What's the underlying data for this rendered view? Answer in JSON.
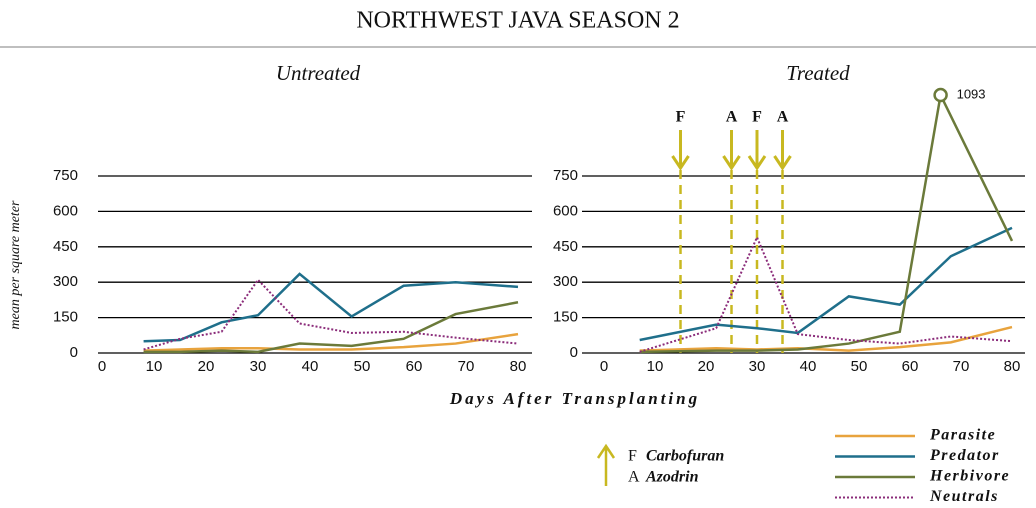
{
  "title": "NORTHWEST JAVA SEASON 2",
  "x_label": "Days After Transplanting",
  "y_label": "mean per square meter",
  "treatment_legend": [
    {
      "code": "F",
      "name": "Carbofuran"
    },
    {
      "code": "A",
      "name": "Azodrin"
    }
  ],
  "chart_data": [
    {
      "type": "line",
      "subtitle": "Untreated",
      "xlim": [
        0,
        80
      ],
      "xticks": [
        0,
        10,
        20,
        30,
        40,
        50,
        60,
        70,
        80
      ],
      "ylim": [
        0,
        750
      ],
      "yticks": [
        0,
        150,
        300,
        450,
        600,
        750
      ],
      "grid": true,
      "series": [
        {
          "name": "Parasite",
          "color": "#e8a33d",
          "style": "solid",
          "x": [
            8,
            15,
            23,
            30,
            38,
            48,
            58,
            68,
            80
          ],
          "values": [
            10,
            15,
            20,
            20,
            15,
            15,
            25,
            40,
            80
          ]
        },
        {
          "name": "Predator",
          "color": "#1f6f8b",
          "style": "solid",
          "x": [
            8,
            15,
            23,
            30,
            38,
            48,
            58,
            68,
            80
          ],
          "values": [
            50,
            55,
            130,
            160,
            335,
            155,
            285,
            300,
            280
          ]
        },
        {
          "name": "Herbivore",
          "color": "#6b7a3a",
          "style": "solid",
          "x": [
            8,
            15,
            23,
            30,
            38,
            48,
            58,
            68,
            80
          ],
          "values": [
            5,
            5,
            10,
            5,
            40,
            30,
            60,
            165,
            215
          ]
        },
        {
          "name": "Neutrals",
          "color": "#8b2c7a",
          "style": "dotted",
          "x": [
            8,
            15,
            23,
            30,
            38,
            48,
            58,
            68,
            80
          ],
          "values": [
            15,
            60,
            90,
            310,
            125,
            85,
            90,
            65,
            40
          ]
        }
      ]
    },
    {
      "type": "line",
      "subtitle": "Treated",
      "xlim": [
        0,
        80
      ],
      "xticks": [
        0,
        10,
        20,
        30,
        40,
        50,
        60,
        70,
        80
      ],
      "ylim": [
        0,
        750
      ],
      "yticks": [
        0,
        150,
        300,
        450,
        600,
        750
      ],
      "grid": true,
      "treatments": [
        {
          "x": 15,
          "label": "F"
        },
        {
          "x": 25,
          "label": "A"
        },
        {
          "x": 30,
          "label": "F"
        },
        {
          "x": 35,
          "label": "A"
        }
      ],
      "treatment_color": "#c8b820",
      "series": [
        {
          "name": "Parasite",
          "color": "#e8a33d",
          "style": "solid",
          "x": [
            7,
            22,
            30,
            38,
            48,
            58,
            68,
            80
          ],
          "values": [
            10,
            20,
            15,
            20,
            10,
            25,
            45,
            110
          ]
        },
        {
          "name": "Predator",
          "color": "#1f6f8b",
          "style": "solid",
          "x": [
            7,
            22,
            30,
            38,
            48,
            58,
            68,
            80
          ],
          "values": [
            55,
            120,
            105,
            85,
            240,
            205,
            410,
            530
          ]
        },
        {
          "name": "Herbivore",
          "color": "#6b7a3a",
          "style": "solid",
          "x": [
            7,
            22,
            30,
            38,
            48,
            58,
            66,
            80
          ],
          "values": [
            5,
            10,
            10,
            15,
            40,
            90,
            1093,
            475
          ],
          "labeled_point": 6
        },
        {
          "name": "Neutrals",
          "color": "#8b2c7a",
          "style": "dotted",
          "x": [
            7,
            22,
            30,
            38,
            48,
            58,
            68,
            80
          ],
          "values": [
            5,
            105,
            490,
            80,
            55,
            40,
            70,
            50
          ]
        }
      ]
    }
  ]
}
